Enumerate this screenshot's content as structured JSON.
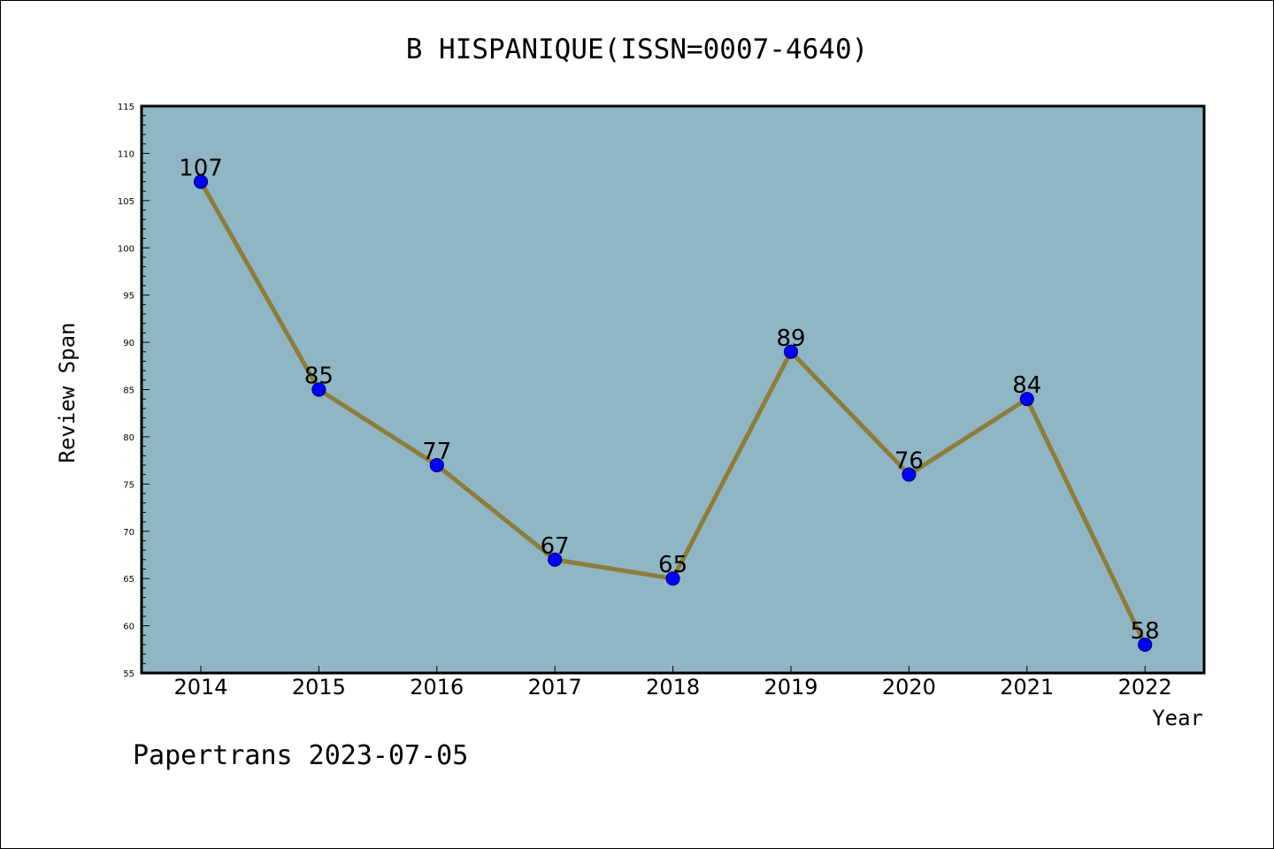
{
  "chart_data": {
    "type": "line",
    "title": "B HISPANIQUE(ISSN=0007-4640)",
    "xlabel": "Year",
    "ylabel": "Review Span",
    "categories": [
      "2014",
      "2015",
      "2016",
      "2017",
      "2018",
      "2019",
      "2020",
      "2021",
      "2022"
    ],
    "series": [
      {
        "values": [
          107,
          85,
          77,
          67,
          65,
          89,
          76,
          84,
          58
        ]
      }
    ],
    "ylim": [
      55,
      115
    ],
    "yticks": [
      55,
      60,
      65,
      70,
      75,
      80,
      85,
      90,
      95,
      100,
      105,
      110,
      115
    ],
    "grid": false,
    "data_labels": true,
    "footer": "Papertrans 2023-07-05",
    "colors": {
      "plot_background": "#8fb6c4",
      "line": "#8c7d3a",
      "marker": "#0000ff",
      "marker_edge": "#000080"
    }
  }
}
